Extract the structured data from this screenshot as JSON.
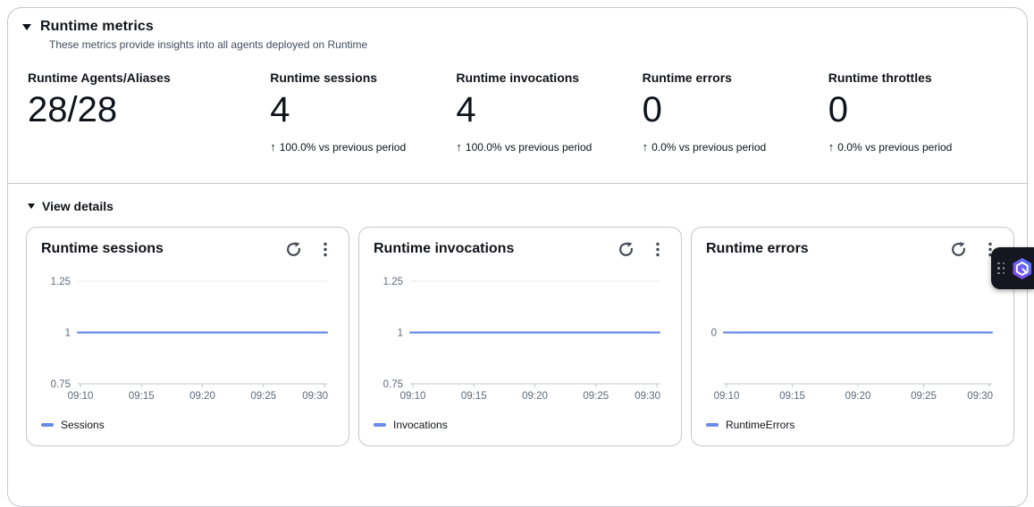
{
  "header": {
    "title": "Runtime metrics",
    "description": "These metrics provide insights into all agents deployed on Runtime"
  },
  "summary_metrics": [
    {
      "label": "Runtime Agents/Aliases",
      "value": "28/28",
      "trend_arrow": "",
      "trend": ""
    },
    {
      "label": "Runtime sessions",
      "value": "4",
      "trend_arrow": "↑",
      "trend": "100.0% vs previous period"
    },
    {
      "label": "Runtime invocations",
      "value": "4",
      "trend_arrow": "↑",
      "trend": "100.0% vs previous period"
    },
    {
      "label": "Runtime errors",
      "value": "0",
      "trend_arrow": "↑",
      "trend": "0.0% vs previous period"
    },
    {
      "label": "Runtime throttles",
      "value": "0",
      "trend_arrow": "↑",
      "trend": "0.0% vs previous period"
    }
  ],
  "view_details": {
    "label": "View details"
  },
  "chart_data": [
    {
      "type": "line",
      "title": "Runtime sessions",
      "x": [
        "09:10",
        "09:15",
        "09:20",
        "09:25",
        "09:30"
      ],
      "series": [
        {
          "name": "Sessions",
          "values": [
            1,
            1,
            1,
            1,
            1
          ]
        }
      ],
      "ylim": [
        0.75,
        1.25
      ],
      "yticks": [
        0.75,
        1,
        1.25
      ],
      "line_color": "#688AE8",
      "grid": true,
      "legend_position": "bottom"
    },
    {
      "type": "line",
      "title": "Runtime invocations",
      "x": [
        "09:10",
        "09:15",
        "09:20",
        "09:25",
        "09:30"
      ],
      "series": [
        {
          "name": "Invocations",
          "values": [
            1,
            1,
            1,
            1,
            1
          ]
        }
      ],
      "ylim": [
        0.75,
        1.25
      ],
      "yticks": [
        0.75,
        1,
        1.25
      ],
      "line_color": "#688AE8",
      "grid": true,
      "legend_position": "bottom"
    },
    {
      "type": "line",
      "title": "Runtime errors",
      "x": [
        "09:10",
        "09:15",
        "09:20",
        "09:25",
        "09:30"
      ],
      "series": [
        {
          "name": "RuntimeErrors",
          "values": [
            0,
            0,
            0,
            0,
            0
          ]
        }
      ],
      "ylim": [
        -1,
        1
      ],
      "yticks": [
        0
      ],
      "line_color": "#688AE8",
      "grid": true,
      "legend_position": "bottom"
    }
  ],
  "colors": {
    "chart_line": "#688AE8",
    "gridline": "#e9ebed",
    "axis": "#c1c7cd",
    "text_primary": "#0f141a",
    "text_secondary": "#414d5c",
    "border": "#c6c6cd",
    "q_gradient_start": "#4a7dff",
    "q_gradient_end": "#8b3ef2"
  },
  "q_widget": {
    "name": "Amazon Q assistant"
  }
}
